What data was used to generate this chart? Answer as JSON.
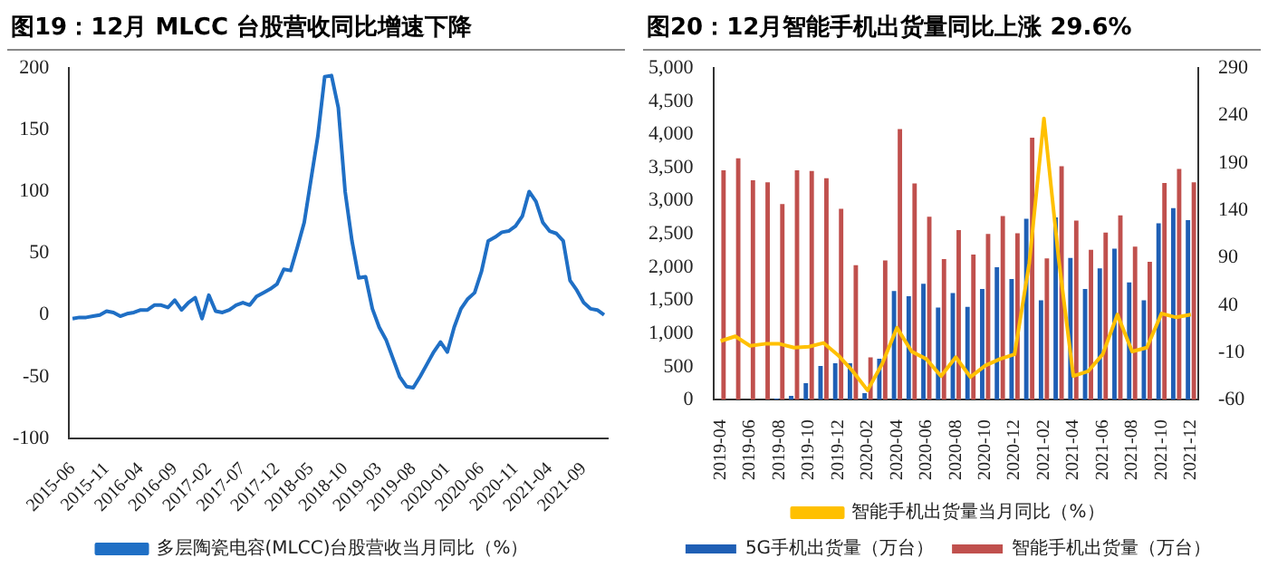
{
  "chart_data": [
    {
      "type": "line",
      "title": "图19：12月 MLCC 台股营收同比增速下降",
      "categories": [
        "2015-06",
        null,
        null,
        null,
        null,
        "2015-11",
        null,
        null,
        null,
        null,
        "2016-04",
        null,
        null,
        null,
        null,
        "2016-09",
        null,
        null,
        null,
        null,
        "2017-02",
        null,
        null,
        null,
        null,
        "2017-07",
        null,
        null,
        null,
        null,
        "2017-12",
        null,
        null,
        null,
        null,
        "2018-05",
        null,
        null,
        null,
        null,
        "2018-10",
        null,
        null,
        null,
        null,
        "2019-03",
        null,
        null,
        null,
        null,
        "2019-08",
        null,
        null,
        null,
        null,
        "2020-01",
        null,
        null,
        null,
        null,
        "2020-06",
        null,
        null,
        null,
        null,
        "2020-11",
        null,
        null,
        null,
        null,
        "2021-04",
        null,
        null,
        null,
        null,
        "2021-09",
        null,
        null,
        null
      ],
      "series": [
        {
          "name": "多层陶瓷电容(MLCC)台股营收当月同比（%）",
          "color": "#1f6fc5",
          "values": [
            -3,
            -2,
            -2,
            -1,
            0,
            3,
            2,
            -1,
            1,
            2,
            4,
            4,
            8,
            8,
            6,
            12,
            4,
            10,
            14,
            -3,
            16,
            3,
            2,
            4,
            8,
            10,
            8,
            15,
            18,
            21,
            25,
            37,
            36,
            55,
            75,
            110,
            145,
            193,
            194,
            168,
            100,
            60,
            30,
            31,
            5,
            -10,
            -20,
            -35,
            -50,
            -58,
            -59,
            -50,
            -40,
            -30,
            -22,
            -30,
            -10,
            5,
            13,
            18,
            35,
            60,
            63,
            67,
            68,
            72,
            80,
            100,
            92,
            75,
            68,
            66,
            60,
            28,
            20,
            10,
            5,
            4,
            0
          ]
        }
      ],
      "ylim": [
        -100,
        200
      ],
      "yticks": [
        -100,
        -50,
        0,
        50,
        100,
        150,
        200
      ],
      "legend": "bottom",
      "grid": false,
      "marker": "none"
    },
    {
      "type": "bar",
      "title": "图20：12月智能手机出货量同比上涨 29.6%",
      "categories": [
        "2019-04",
        null,
        "2019-06",
        null,
        "2019-08",
        null,
        "2019-10",
        null,
        "2019-12",
        null,
        "2020-02",
        null,
        "2020-04",
        null,
        "2020-06",
        null,
        "2020-08",
        null,
        "2020-10",
        null,
        "2020-12",
        null,
        "2021-02",
        null,
        "2021-04",
        null,
        "2021-06",
        null,
        "2021-08",
        null,
        "2021-10",
        null,
        "2021-12"
      ],
      "series": [
        {
          "name": "5G手机出货量（万台）",
          "color": "#1f5fb5",
          "values": [
            0,
            0,
            0,
            0,
            20,
            60,
            250,
            510,
            550,
            550,
            100,
            620,
            1640,
            1560,
            1750,
            1390,
            1610,
            1400,
            1670,
            2000,
            1820,
            2730,
            1500,
            2750,
            2140,
            1670,
            1980,
            2280,
            1770,
            1500,
            2660,
            2890,
            2710
          ]
        },
        {
          "name": "智能手机出货量（万台）",
          "color": "#c0504d",
          "values": [
            3460,
            3640,
            3310,
            3280,
            2950,
            3460,
            3450,
            3340,
            2880,
            2030,
            640,
            2100,
            4080,
            3260,
            2760,
            2120,
            2560,
            2190,
            2500,
            2770,
            2510,
            3950,
            2130,
            3520,
            2700,
            2260,
            2520,
            2780,
            2310,
            2080,
            3270,
            3480,
            3280
          ]
        },
        {
          "name": "智能手机出货量当月同比（%）",
          "color": "#ffc000",
          "type": "line",
          "axis": "y2",
          "values": [
            2,
            7,
            -3,
            -1,
            -1,
            -5,
            -4,
            0,
            -13,
            -30,
            -50,
            -22,
            16,
            -9,
            -17,
            -35,
            -15,
            -36,
            -24,
            -17,
            -12,
            84,
            237,
            89,
            -35,
            -30,
            -12,
            30,
            -9,
            -5,
            31,
            27,
            30
          ]
        }
      ],
      "ylim": [
        0,
        5000
      ],
      "yticks": [
        0,
        500,
        {
          "value": 1000,
          "label": "1,000"
        },
        {
          "value": 1500,
          "label": "1,500"
        },
        {
          "value": 2000,
          "label": "2,000"
        },
        {
          "value": 2500,
          "label": "2,500"
        },
        {
          "value": 3000,
          "label": "3,000"
        },
        {
          "value": 3500,
          "label": "3,500"
        },
        {
          "value": 4000,
          "label": "4,000"
        },
        {
          "value": 4500,
          "label": "4,500"
        },
        {
          "value": 5000,
          "label": "5,000"
        }
      ],
      "y2lim": [
        -60,
        290
      ],
      "y2ticks": [
        -60,
        -10,
        40,
        90,
        140,
        190,
        240,
        290
      ],
      "legend": "bottom",
      "grid": false,
      "marker": "none"
    }
  ]
}
